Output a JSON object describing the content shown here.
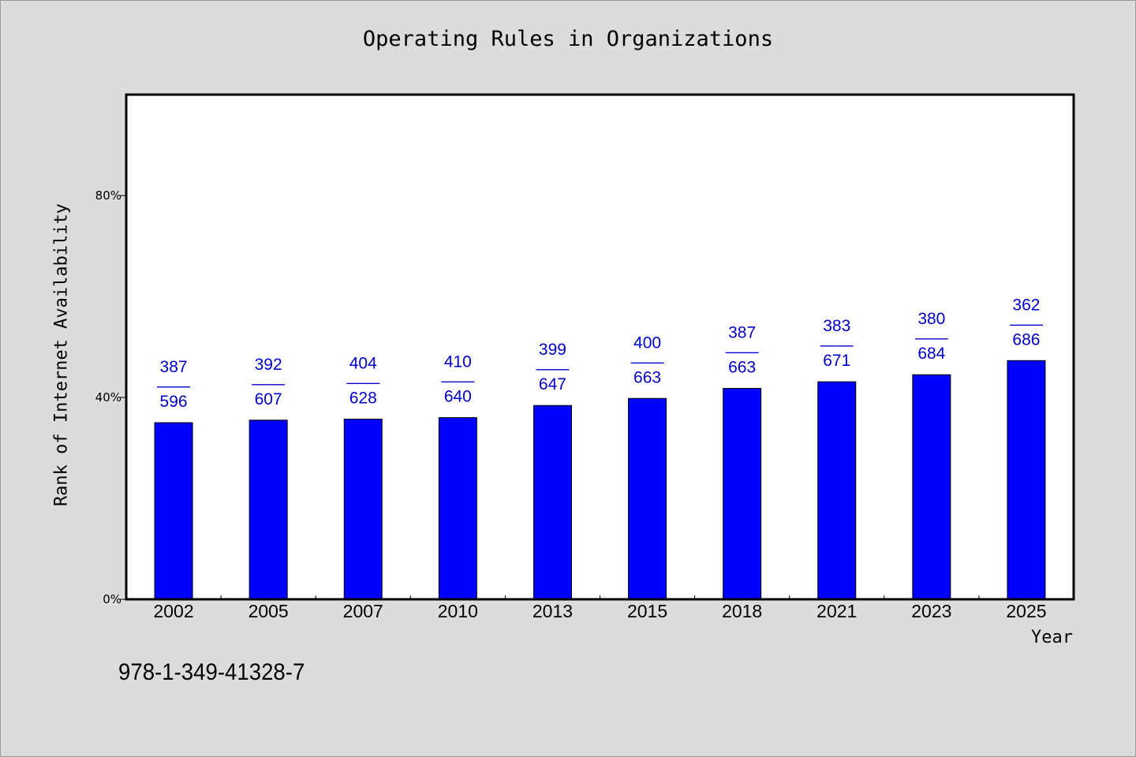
{
  "chart_data": {
    "type": "bar",
    "title": "Operating Rules in Organizations",
    "xlabel": "Year",
    "ylabel": "Rank of Internet Availability",
    "categories": [
      "2002",
      "2005",
      "2007",
      "2010",
      "2013",
      "2015",
      "2018",
      "2021",
      "2023",
      "2025"
    ],
    "values": [
      35,
      35.5,
      35.7,
      36,
      38.4,
      39.8,
      41.8,
      43.1,
      44.5,
      47.3
    ],
    "data_labels": [
      {
        "top": "387",
        "sep": "——",
        "bottom": "596"
      },
      {
        "top": "392",
        "sep": "——",
        "bottom": "607"
      },
      {
        "top": "404",
        "sep": "——",
        "bottom": "628"
      },
      {
        "top": "410",
        "sep": "——",
        "bottom": "640"
      },
      {
        "top": "399",
        "sep": "——",
        "bottom": "647"
      },
      {
        "top": "400",
        "sep": "——",
        "bottom": "663"
      },
      {
        "top": "387",
        "sep": "——",
        "bottom": "663"
      },
      {
        "top": "383",
        "sep": "——",
        "bottom": "671"
      },
      {
        "top": "380",
        "sep": "——",
        "bottom": "684"
      },
      {
        "top": "362",
        "sep": "——",
        "bottom": "686"
      }
    ],
    "ylim": [
      0,
      100
    ],
    "yticks": [
      0,
      40,
      80
    ],
    "ytick_labels": [
      "0%",
      "40%",
      "80%"
    ],
    "grid": false,
    "bar_color": "#0000ff",
    "label_color": "#0000cc"
  },
  "annotation": "978-1-349-41328-7"
}
